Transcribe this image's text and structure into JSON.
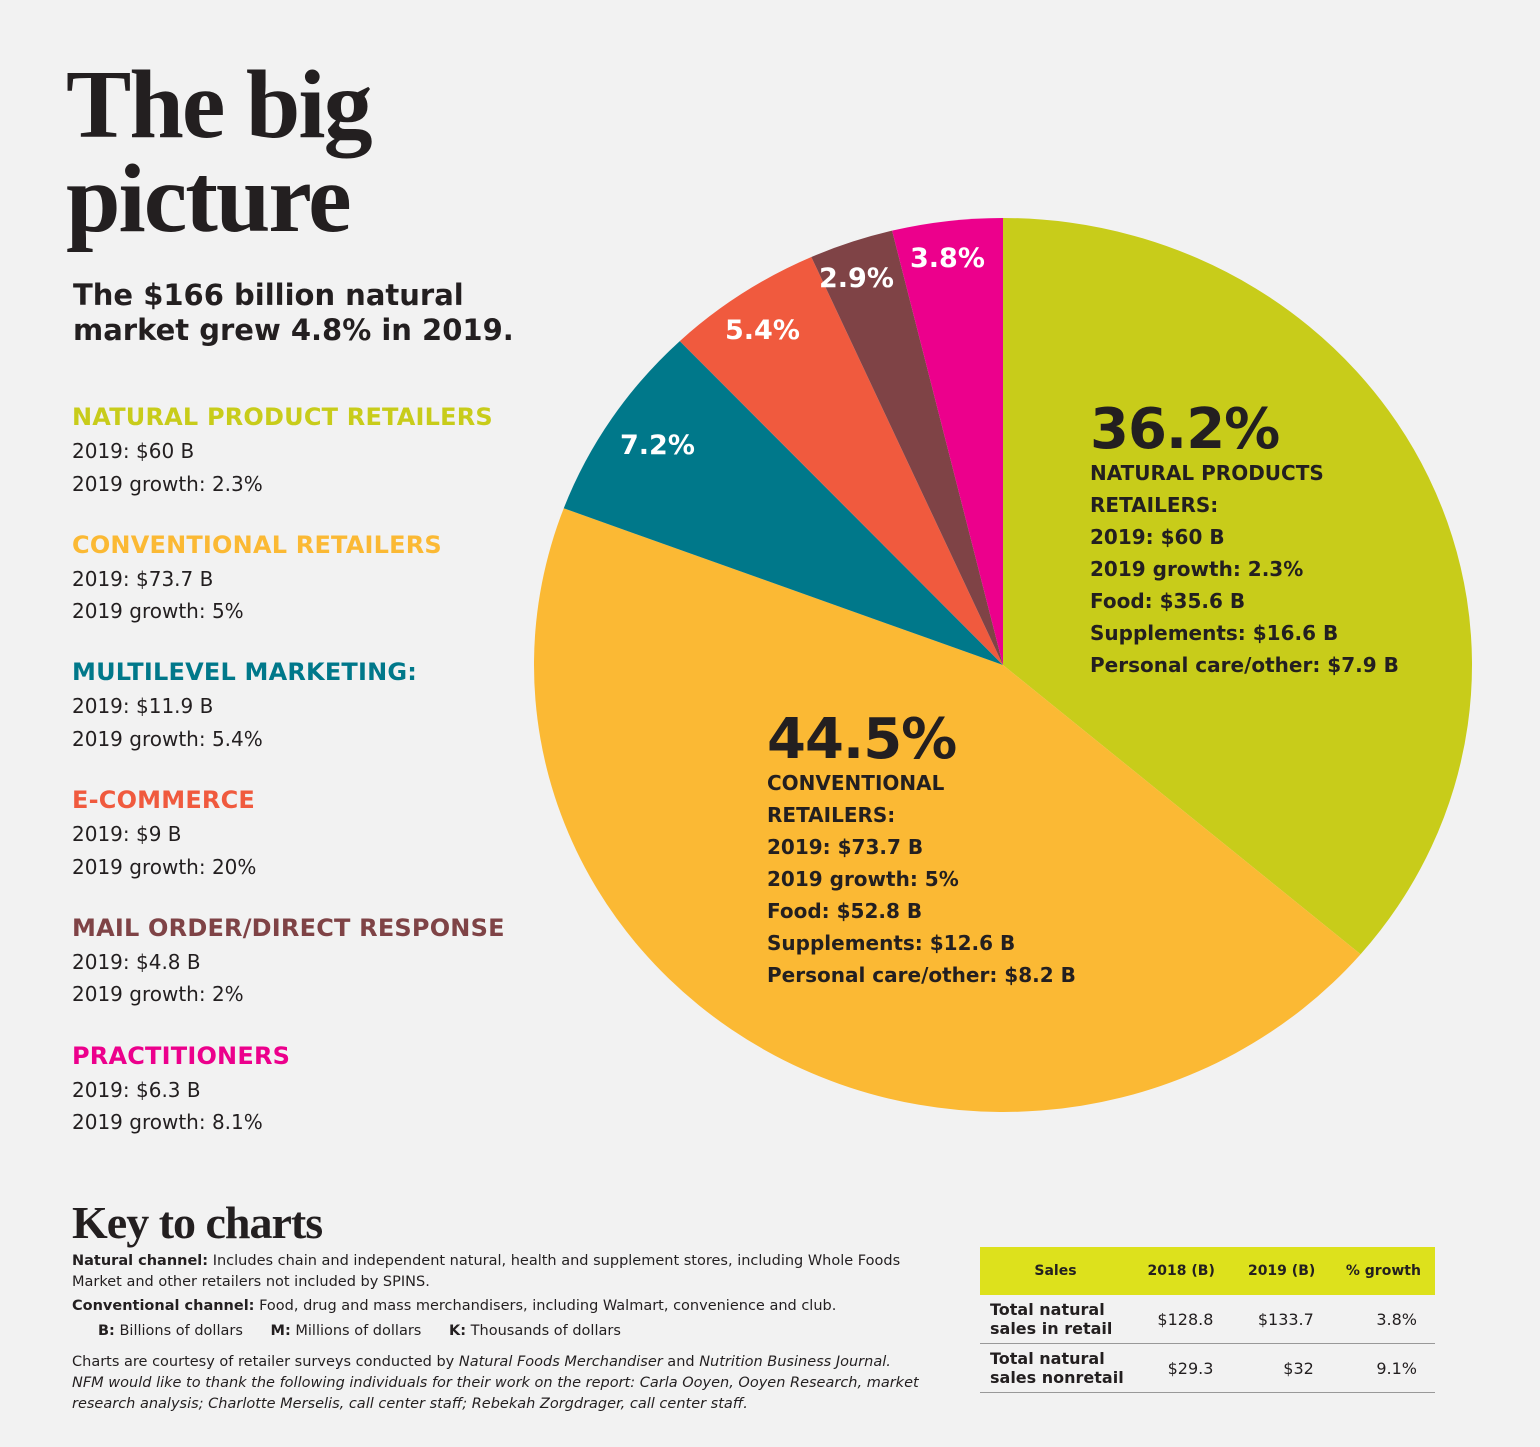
{
  "chart_data": {
    "type": "pie",
    "title": "The big picture",
    "subtitle": "The $166 billion natural market grew 4.8% in 2019.",
    "categories": [
      "NATURAL PRODUCT RETAILERS",
      "CONVENTIONAL RETAILERS",
      "MULTILEVEL MARKETING:",
      "E-COMMERCE",
      "MAIL ORDER/DIRECT RESPONSE",
      "PRACTITIONERS"
    ],
    "values": [
      36.2,
      44.5,
      7.2,
      5.4,
      2.9,
      3.8
    ],
    "value_labels": [
      "36.2%",
      "44.5%",
      "7.2%",
      "5.4%",
      "2.9%",
      "3.8%"
    ],
    "colors": [
      "#c8cc1a",
      "#fbb934",
      "#00788a",
      "#f05a3e",
      "#7f4346",
      "#ec008c"
    ],
    "legend_details": [
      [
        "2019: $60 B",
        "2019 growth: 2.3%"
      ],
      [
        "2019: $73.7 B",
        "2019 growth: 5%"
      ],
      [
        "2019: $11.9 B",
        "2019 growth: 5.4%"
      ],
      [
        "2019: $9 B",
        "2019 growth: 20%"
      ],
      [
        "2019: $4.8 B",
        "2019 growth: 2%"
      ],
      [
        "2019: $6.3 B",
        "2019 growth: 8.1%"
      ]
    ],
    "annotations": [
      [
        "NATURAL PRODUCTS",
        "RETAILERS:",
        "2019: $60 B",
        "2019 growth: 2.3%",
        "Food: $35.6 B",
        "Supplements: $16.6 B",
        "Personal care/other: $7.9 B"
      ],
      [
        "CONVENTIONAL",
        "RETAILERS:",
        "2019: $73.7 B",
        "2019 growth: 5%",
        "Food: $52.8 B",
        "Supplements: $12.6 B",
        "Personal care/other: $8.2 B"
      ]
    ]
  },
  "key": {
    "title": "Key to charts",
    "natural": {
      "term": "Natural channel:",
      "text": " Includes chain and independent natural, health and supplement stores, including Whole Foods Market and other retailers not included by SPINS."
    },
    "conventional": {
      "term": "Conventional channel:",
      "text": " Food, drug and mass merchandisers, including Walmart, convenience and club."
    },
    "units": [
      {
        "abbr": "B:",
        "text": " Billions of dollars"
      },
      {
        "abbr": "M:",
        "text": " Millions of dollars"
      },
      {
        "abbr": "K:",
        "text": " Thousands of dollars"
      }
    ],
    "credits": [
      "Charts are courtesy of retailer surveys conducted by ",
      "Natural Foods Merchandiser",
      " and ",
      "Nutrition Business Journal.",
      "NFM would like to thank the following individuals for their work on the report: Carla Ooyen, Ooyen Research, market research analysis; Charlotte Merselis, call center staff; Rebekah Zorgdrager, call center staff."
    ]
  },
  "table": {
    "header": [
      "Sales",
      "2018 (B)",
      "2019 (B)",
      "% growth"
    ],
    "rows": [
      [
        "Total natural sales in retail",
        "$128.8",
        "$133.7",
        "3.8%"
      ],
      [
        "Total natural sales nonretail",
        "$29.3",
        "$32",
        "9.1%"
      ]
    ]
  }
}
